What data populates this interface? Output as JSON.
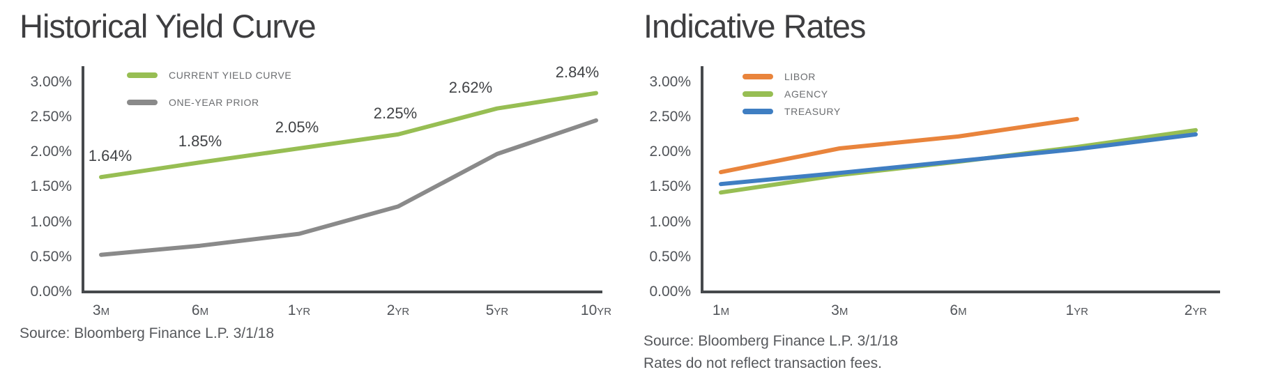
{
  "theme": {
    "background": "#ffffff",
    "axis_color": "#46494c",
    "tick_text_color": "#515459",
    "legend_text_color": "#6b6d70",
    "title_text_color": "#3e3e40",
    "source_text_color": "#56585c",
    "green": "#97be53",
    "gray": "#8a8a8a",
    "orange": "#e9843c",
    "blue": "#3f7ec2"
  },
  "chart_data": [
    {
      "type": "line",
      "title": "Historical Yield Curve",
      "categories": [
        "3M",
        "6M",
        "1YR",
        "2YR",
        "5YR",
        "10YR"
      ],
      "xlabel": "",
      "ylabel": "",
      "ylim": [
        0,
        3.0
      ],
      "yticks": [
        "3.00%",
        "2.50%",
        "2.00%",
        "1.50%",
        "1.00%",
        "0.50%",
        "0.00%"
      ],
      "grid": false,
      "legend_position": "top-left-inside",
      "series": [
        {
          "name": "CURRENT YIELD CURVE",
          "color": "#97be53",
          "values": [
            1.64,
            1.85,
            2.05,
            2.25,
            2.62,
            2.84
          ],
          "point_labels": [
            "1.64%",
            "1.85%",
            "2.05%",
            "2.25%",
            "2.62%",
            "2.84%"
          ]
        },
        {
          "name": "ONE-YEAR PRIOR",
          "color": "#8a8a8a",
          "values": [
            0.53,
            0.66,
            0.83,
            1.22,
            1.97,
            2.45
          ]
        }
      ],
      "source": "Source: Bloomberg Finance L.P. 3/1/18"
    },
    {
      "type": "line",
      "title": "Indicative Rates",
      "categories": [
        "1M",
        "3M",
        "6M",
        "1YR",
        "2YR"
      ],
      "xlabel": "",
      "ylabel": "",
      "ylim": [
        0,
        3.0
      ],
      "yticks": [
        "3.00%",
        "2.50%",
        "2.00%",
        "1.50%",
        "1.00%",
        "0.50%",
        "0.00%"
      ],
      "grid": false,
      "legend_position": "top-left-inside",
      "series": [
        {
          "name": "LIBOR",
          "color": "#e9843c",
          "values": [
            1.71,
            2.05,
            2.22,
            2.47,
            null
          ]
        },
        {
          "name": "AGENCY",
          "color": "#97be53",
          "values": [
            1.42,
            1.67,
            1.86,
            2.07,
            2.31
          ]
        },
        {
          "name": "TREASURY",
          "color": "#3f7ec2",
          "values": [
            1.54,
            1.7,
            1.87,
            2.04,
            2.25
          ]
        }
      ],
      "source": "Source: Bloomberg Finance L.P. 3/1/18",
      "footnote": "Rates do not reflect transaction fees."
    }
  ]
}
